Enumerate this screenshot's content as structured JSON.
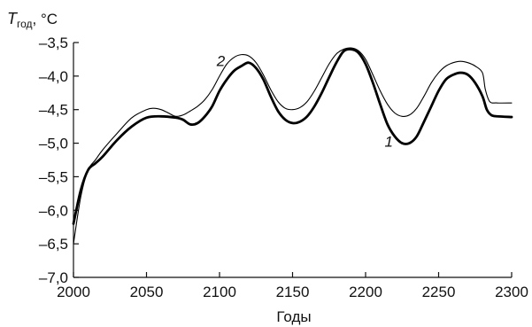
{
  "chart_data": {
    "type": "line",
    "ylabel_symbol": "T",
    "ylabel_subscript": "год",
    "ylabel_unit": ", °C",
    "xlabel": "Годы",
    "xlim": [
      2000,
      2300
    ],
    "ylim": [
      -7.0,
      -3.5
    ],
    "x_ticks": [
      2000,
      2050,
      2100,
      2150,
      2200,
      2250,
      2300
    ],
    "x_tick_labels": [
      "2000",
      "2050",
      "2100",
      "2150",
      "2200",
      "2250",
      "2300"
    ],
    "y_ticks": [
      -3.5,
      -4.0,
      -4.5,
      -5.0,
      -5.5,
      -6.0,
      -6.5,
      -7.0
    ],
    "y_tick_labels": [
      "–3,5",
      "–4,0",
      "–4,5",
      "–5,0",
      "–5,5",
      "–6,0",
      "–6,5",
      "–7,0"
    ],
    "grid": false,
    "series": [
      {
        "name": "1",
        "color": "#000000",
        "width": "thick",
        "label_at": [
          2213,
          -5.05
        ],
        "points": [
          [
            2000,
            -6.2
          ],
          [
            2005,
            -5.7
          ],
          [
            2010,
            -5.4
          ],
          [
            2015,
            -5.3
          ],
          [
            2020,
            -5.2
          ],
          [
            2030,
            -4.95
          ],
          [
            2040,
            -4.75
          ],
          [
            2050,
            -4.62
          ],
          [
            2060,
            -4.6
          ],
          [
            2070,
            -4.62
          ],
          [
            2075,
            -4.65
          ],
          [
            2080,
            -4.72
          ],
          [
            2085,
            -4.7
          ],
          [
            2090,
            -4.6
          ],
          [
            2095,
            -4.45
          ],
          [
            2100,
            -4.22
          ],
          [
            2105,
            -4.05
          ],
          [
            2110,
            -3.92
          ],
          [
            2115,
            -3.85
          ],
          [
            2120,
            -3.8
          ],
          [
            2125,
            -3.88
          ],
          [
            2130,
            -4.05
          ],
          [
            2135,
            -4.3
          ],
          [
            2140,
            -4.52
          ],
          [
            2145,
            -4.65
          ],
          [
            2150,
            -4.7
          ],
          [
            2155,
            -4.68
          ],
          [
            2160,
            -4.6
          ],
          [
            2165,
            -4.45
          ],
          [
            2170,
            -4.25
          ],
          [
            2175,
            -4.02
          ],
          [
            2180,
            -3.8
          ],
          [
            2185,
            -3.63
          ],
          [
            2190,
            -3.6
          ],
          [
            2195,
            -3.65
          ],
          [
            2200,
            -3.82
          ],
          [
            2205,
            -4.1
          ],
          [
            2210,
            -4.42
          ],
          [
            2215,
            -4.72
          ],
          [
            2220,
            -4.9
          ],
          [
            2225,
            -5.0
          ],
          [
            2230,
            -5.0
          ],
          [
            2235,
            -4.9
          ],
          [
            2240,
            -4.68
          ],
          [
            2245,
            -4.45
          ],
          [
            2250,
            -4.22
          ],
          [
            2255,
            -4.05
          ],
          [
            2260,
            -3.98
          ],
          [
            2265,
            -3.95
          ],
          [
            2270,
            -3.98
          ],
          [
            2275,
            -4.1
          ],
          [
            2280,
            -4.3
          ],
          [
            2283,
            -4.5
          ],
          [
            2286,
            -4.58
          ],
          [
            2290,
            -4.6
          ],
          [
            2300,
            -4.61
          ]
        ]
      },
      {
        "name": "2",
        "color": "#000000",
        "width": "thin",
        "label_at": [
          2098,
          -3.85
        ],
        "points": [
          [
            2000,
            -6.5
          ],
          [
            2005,
            -5.8
          ],
          [
            2010,
            -5.4
          ],
          [
            2015,
            -5.25
          ],
          [
            2020,
            -5.1
          ],
          [
            2030,
            -4.85
          ],
          [
            2040,
            -4.62
          ],
          [
            2050,
            -4.5
          ],
          [
            2055,
            -4.48
          ],
          [
            2060,
            -4.5
          ],
          [
            2065,
            -4.55
          ],
          [
            2070,
            -4.6
          ],
          [
            2075,
            -4.58
          ],
          [
            2080,
            -4.52
          ],
          [
            2085,
            -4.45
          ],
          [
            2090,
            -4.35
          ],
          [
            2095,
            -4.2
          ],
          [
            2100,
            -4.0
          ],
          [
            2105,
            -3.82
          ],
          [
            2110,
            -3.72
          ],
          [
            2115,
            -3.68
          ],
          [
            2120,
            -3.7
          ],
          [
            2125,
            -3.8
          ],
          [
            2130,
            -3.98
          ],
          [
            2135,
            -4.2
          ],
          [
            2140,
            -4.38
          ],
          [
            2145,
            -4.48
          ],
          [
            2150,
            -4.5
          ],
          [
            2155,
            -4.47
          ],
          [
            2160,
            -4.38
          ],
          [
            2165,
            -4.22
          ],
          [
            2170,
            -4.02
          ],
          [
            2175,
            -3.82
          ],
          [
            2180,
            -3.67
          ],
          [
            2185,
            -3.6
          ],
          [
            2190,
            -3.58
          ],
          [
            2195,
            -3.62
          ],
          [
            2200,
            -3.75
          ],
          [
            2205,
            -3.98
          ],
          [
            2210,
            -4.22
          ],
          [
            2215,
            -4.42
          ],
          [
            2220,
            -4.55
          ],
          [
            2225,
            -4.6
          ],
          [
            2230,
            -4.58
          ],
          [
            2235,
            -4.48
          ],
          [
            2240,
            -4.3
          ],
          [
            2245,
            -4.1
          ],
          [
            2250,
            -3.95
          ],
          [
            2255,
            -3.85
          ],
          [
            2260,
            -3.8
          ],
          [
            2265,
            -3.78
          ],
          [
            2270,
            -3.8
          ],
          [
            2275,
            -3.85
          ],
          [
            2280,
            -3.95
          ],
          [
            2282,
            -4.2
          ],
          [
            2285,
            -4.38
          ],
          [
            2290,
            -4.4
          ],
          [
            2300,
            -4.4
          ]
        ]
      }
    ]
  }
}
